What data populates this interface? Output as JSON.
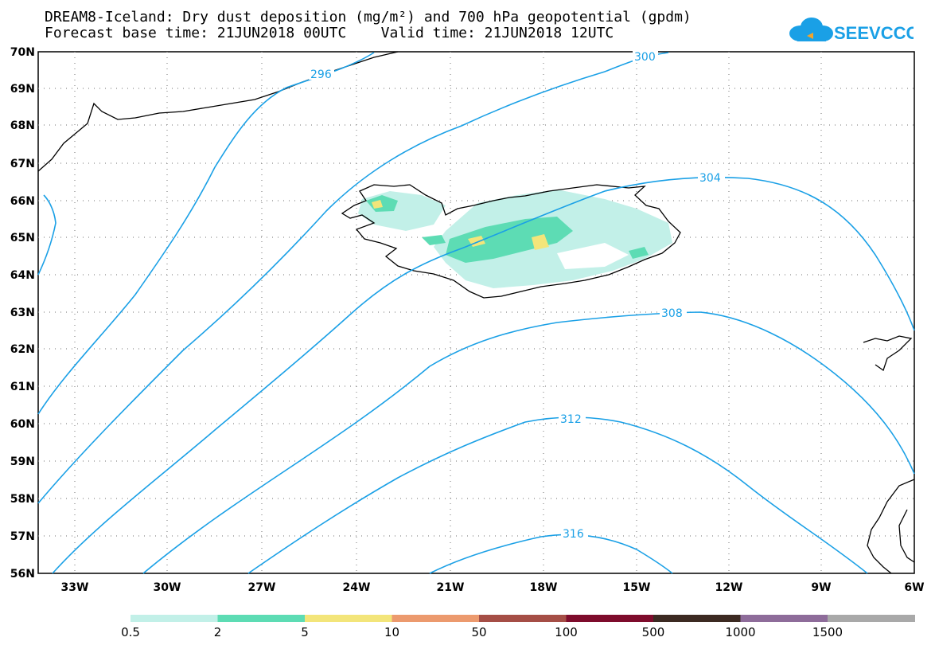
{
  "title_line1": "DREAM8-Iceland: Dry dust deposition (mg/m²) and 700 hPa geopotential (gpdm)",
  "title_line2": "Forecast base time: 21JUN2018 00UTC    Valid time: 21JUN2018 12UTC",
  "logo_text": "SEEVCCC",
  "logo_color": "#1aa0e6",
  "latitude_labels": [
    "70N",
    "69N",
    "68N",
    "67N",
    "66N",
    "65N",
    "64N",
    "63N",
    "62N",
    "61N",
    "60N",
    "59N",
    "58N",
    "57N",
    "56N"
  ],
  "longitude_labels": [
    "33W",
    "30W",
    "27W",
    "24W",
    "21W",
    "18W",
    "15W",
    "12W",
    "9W",
    "6W"
  ],
  "contour_labels": [
    "296",
    "300",
    "304",
    "308",
    "312",
    "316"
  ],
  "contour_color": "#1aa0e6",
  "legend": {
    "labels": [
      "0.5",
      "2",
      "5",
      "10",
      "50",
      "100",
      "500",
      "1000",
      "1500"
    ],
    "colors": [
      "#c2f0e8",
      "#5ddcb4",
      "#f3e57a",
      "#ec9a6e",
      "#a54e46",
      "#7e0c2c",
      "#3c2a22",
      "#8e6c9a",
      "#a9a9a9"
    ]
  }
}
